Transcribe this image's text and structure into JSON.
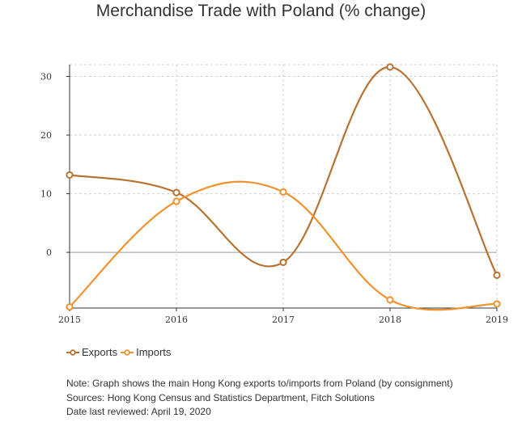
{
  "chart_data": {
    "type": "line",
    "title": "Merchandise Trade with Poland (% change)",
    "xlabel": "",
    "ylabel": "",
    "x": [
      "2015",
      "2016",
      "2017",
      "2018",
      "2019"
    ],
    "ylim": [
      -9.5,
      32
    ],
    "yticks": [
      0,
      10,
      20,
      30
    ],
    "grid": true,
    "legend_position": "bottom-left",
    "series": [
      {
        "name": "Exports",
        "color": "#b87333",
        "values": [
          13.2,
          10.2,
          -1.7,
          31.6,
          -3.9
        ]
      },
      {
        "name": "Imports",
        "color": "#f0922e",
        "values": [
          -9.3,
          8.7,
          10.3,
          -8.1,
          -8.8
        ]
      }
    ]
  },
  "notes": [
    "Note: Graph shows the main Hong Kong exports to/imports from Poland (by consignment)",
    "Sources: Hong Kong Census and Statistics Department, Fitch Solutions",
    "Date last reviewed: April 19, 2020"
  ]
}
